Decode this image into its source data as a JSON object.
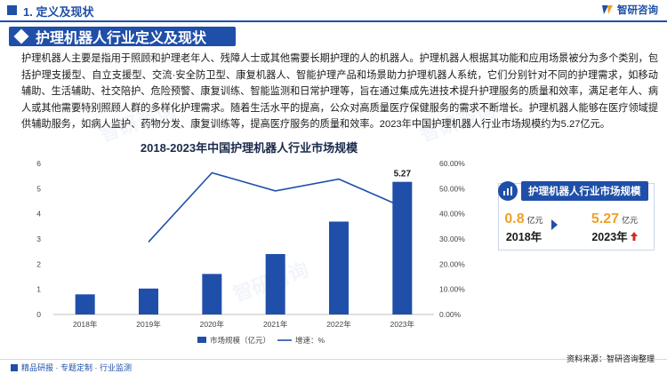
{
  "header": {
    "section": "1. 定义及现状",
    "logo_text": "智研咨询"
  },
  "title": "护理机器人行业定义及现状",
  "body": "护理机器人主要是指用于照顾和护理老年人、残障人士或其他需要长期护理的人的机器人。护理机器人根据其功能和应用场景被分为多个类别，包括护理支援型、自立支援型、交流·安全防卫型、康复机器人、智能护理产品和场景助力护理机器人系统，它们分别针对不同的护理需求，如移动辅助、生活辅助、社交陪护、危险预警、康复训练、智能监测和日常护理等，旨在通过集成先进技术提升护理服务的质量和效率，满足老年人、病人或其他需要特别照顾人群的多样化护理需求。随着生活水平的提高，公众对高质量医疗保健服务的需求不断增长。护理机器人能够在医疗领域提供辅助服务，如病人监护、药物分发、康复训练等，提高医疗服务的质量和效率。2023年中国护理机器人行业市场规模约为5.27亿元。",
  "chart_data": {
    "type": "bar",
    "title": "2018-2023年中国护理机器人行业市场规模",
    "categories": [
      "2018年",
      "2019年",
      "2020年",
      "2021年",
      "2022年",
      "2023年"
    ],
    "series": [
      {
        "name": "市场规模（亿元）",
        "type": "bar",
        "values": [
          0.8,
          1.03,
          1.61,
          2.4,
          3.69,
          5.27
        ],
        "color": "#1f4fa8"
      },
      {
        "name": "增速：%",
        "type": "line",
        "values": [
          null,
          28.8,
          56.3,
          49.1,
          53.8,
          42.8
        ],
        "color": "#1f4fa8"
      }
    ],
    "data_labels": {
      "2023年": "5.27"
    },
    "y_left": {
      "ticks": [
        "0",
        "1",
        "2",
        "3",
        "4",
        "5",
        "6"
      ],
      "lim": [
        0,
        6
      ]
    },
    "y_right": {
      "ticks": [
        "0.00%",
        "10.00%",
        "20.00%",
        "30.00%",
        "40.00%",
        "50.00%",
        "60.00%"
      ],
      "lim": [
        0,
        60
      ]
    },
    "legend_position": "bottom",
    "grid": false
  },
  "card": {
    "heading": "护理机器人行业市场规模",
    "start_value": "0.8",
    "start_unit": "亿元",
    "start_year": "2018年",
    "end_value": "5.27",
    "end_unit": "亿元",
    "end_year": "2023年"
  },
  "footer": {
    "left": "精品研报 · 专题定制 · 行业监测",
    "source": "资料来源：智研咨询整理"
  },
  "colors": {
    "brand": "#1f4fa8",
    "accent": "#f0a028",
    "up_arrow": "#d9271c"
  },
  "icons": [
    "logo-icon",
    "chart-icon",
    "arrow-right-icon",
    "arrow-up-icon"
  ]
}
